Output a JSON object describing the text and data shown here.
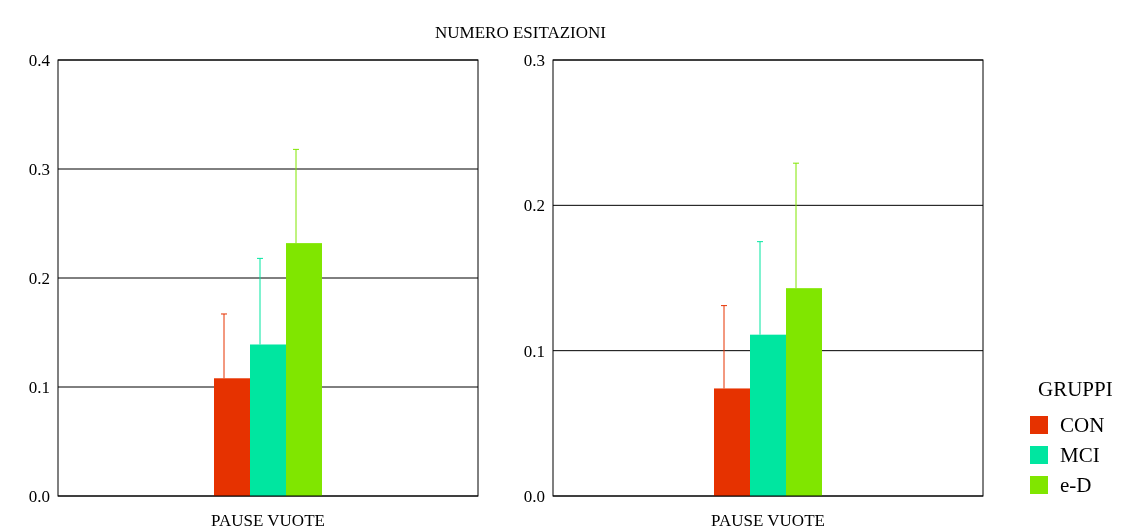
{
  "chart_data": [
    {
      "type": "bar",
      "title": "NUMERO ESITAZIONI",
      "categories": [
        "PAUSE VUOTE"
      ],
      "ylim": [
        0,
        0.4
      ],
      "yticks": [
        {
          "value": 0,
          "label": "0.0"
        },
        0.1,
        0.2,
        0.3,
        0.4
      ],
      "grid": "y",
      "legend": false,
      "series": [
        {
          "color": "#e63200",
          "values": [
            0.108
          ],
          "errors": [
            [
              0.108,
              0.167
            ]
          ]
        },
        {
          "color": "#00e6a0",
          "values": [
            0.139
          ],
          "errors": [
            [
              0.139,
              0.218
            ]
          ]
        },
        {
          "color": "#80e600",
          "values": [
            0.232
          ],
          "errors": [
            [
              0.232,
              0.318
            ]
          ]
        }
      ]
    },
    {
      "type": "bar",
      "categories": [
        "PAUSE VUOTE"
      ],
      "ylim": [
        0,
        0.3
      ],
      "yticks": [
        {
          "value": 0,
          "label": "0.0"
        },
        0.1,
        0.2,
        0.3
      ],
      "grid": "y",
      "legend": "right",
      "legend_title": "GRUPPI",
      "series": [
        {
          "name": "CON",
          "color": "#e63200",
          "values": [
            0.074
          ],
          "errors": [
            [
              0.074,
              0.131
            ]
          ]
        },
        {
          "name": "MCI",
          "color": "#00e6a0",
          "values": [
            0.111
          ],
          "errors": [
            [
              0.111,
              0.175
            ]
          ]
        },
        {
          "name": "e-D",
          "color": "#80e600",
          "values": [
            0.143
          ],
          "errors": [
            [
              0.143,
              0.229
            ]
          ]
        }
      ]
    }
  ]
}
